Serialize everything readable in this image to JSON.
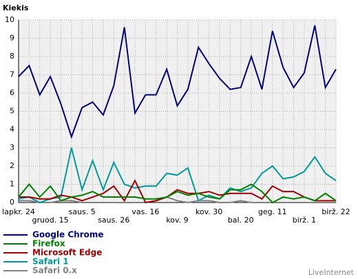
{
  "chart_data": {
    "type": "line",
    "y_label": "Kiekis",
    "credit": "LiveInternet",
    "categories": [
      "lapkr. 24",
      null,
      null,
      "gruod. 15",
      null,
      null,
      "saus. 5",
      null,
      null,
      "saus. 26",
      null,
      null,
      "vas. 16",
      null,
      null,
      "kov. 9",
      null,
      null,
      "kov. 30",
      null,
      null,
      "bal. 20",
      null,
      null,
      "geg. 11",
      null,
      null,
      "birž. 1",
      null,
      null,
      "birž. 22"
    ],
    "series": [
      {
        "name": "Google Chrome",
        "color": "#00007f",
        "values": [
          6.9,
          7.5,
          5.9,
          6.9,
          5.4,
          3.6,
          5.2,
          5.5,
          4.8,
          6.4,
          9.6,
          4.9,
          5.9,
          5.9,
          7.3,
          5.3,
          6.2,
          8.5,
          7.6,
          6.8,
          6.2,
          6.3,
          8.0,
          6.2,
          9.4,
          7.4,
          6.3,
          7.1,
          9.7,
          6.3,
          7.3
        ]
      },
      {
        "name": "Firefox",
        "color": "#008000",
        "values": [
          0.3,
          1.0,
          0.3,
          0.9,
          0.1,
          0.3,
          0.4,
          0.6,
          0.3,
          0.3,
          0.3,
          0.3,
          0.2,
          0.2,
          0.3,
          0.6,
          0.4,
          0.5,
          0.3,
          0.2,
          0.7,
          0.7,
          1.0,
          0.6,
          0.0,
          0.3,
          0.2,
          0.3,
          0.1,
          0.5,
          0.1
        ]
      },
      {
        "name": "Microsoft Edge",
        "color": "#a00000",
        "values": [
          0.3,
          0.3,
          0.2,
          0.2,
          0.4,
          0.3,
          0.1,
          0.3,
          0.5,
          0.9,
          0.1,
          1.2,
          0.0,
          0.1,
          0.3,
          0.7,
          0.5,
          0.5,
          0.6,
          0.4,
          0.5,
          0.5,
          0.5,
          0.2,
          0.9,
          0.6,
          0.6,
          0.3,
          0.1,
          0.1,
          0.1
        ]
      },
      {
        "name": "Safari 1",
        "color": "#009999",
        "values": [
          0.2,
          0.3,
          0.0,
          0.2,
          0.3,
          3.0,
          0.7,
          2.3,
          0.7,
          2.2,
          1.0,
          0.8,
          0.9,
          0.9,
          1.6,
          1.5,
          1.9,
          0.1,
          0.4,
          0.2,
          0.8,
          0.6,
          0.8,
          1.6,
          2.0,
          1.3,
          1.4,
          1.7,
          2.5,
          1.6,
          1.2
        ]
      },
      {
        "name": "Safari 0.x",
        "color": "#808080",
        "values": [
          0.1,
          0.1,
          0.0,
          0.0,
          0.1,
          0.1,
          0.0,
          0.0,
          0.0,
          0.0,
          0.0,
          0.0,
          0.0,
          0.1,
          0.3,
          0.1,
          0.0,
          0.1,
          0.1,
          0.0,
          0.0,
          0.1,
          0.0,
          0.0,
          0.0,
          0.0,
          0.0,
          0.0,
          0.0,
          0.0,
          0.0
        ]
      }
    ],
    "ylim": [
      0,
      10
    ],
    "yticks": [
      0,
      1,
      2,
      3,
      4,
      5,
      6,
      7,
      8,
      9,
      10
    ],
    "grid": true
  }
}
